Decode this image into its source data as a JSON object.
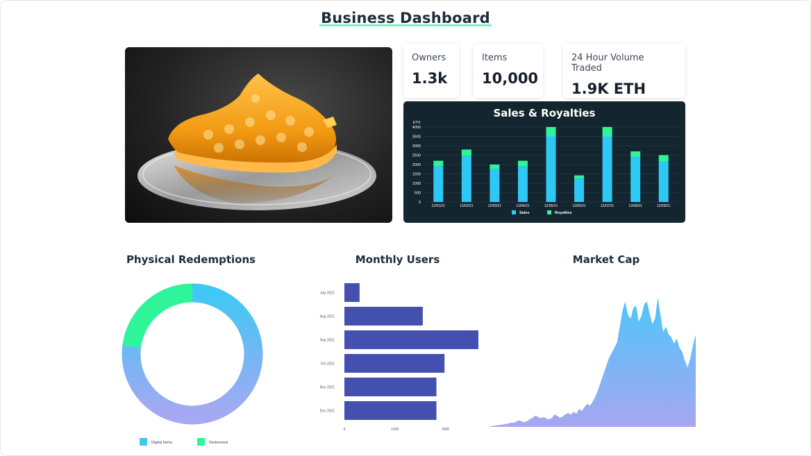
{
  "page": {
    "title": "Business Dashboard"
  },
  "stats": [
    {
      "label": "Owners",
      "value": "1.3k"
    },
    {
      "label": "Items",
      "value": "10,000"
    },
    {
      "label": "24 Hour Volume Traded",
      "value": "1.9K ETH"
    }
  ],
  "sections": {
    "physical_redemptions": "Physical Redemptions",
    "monthly_users": "Monthly Users",
    "market_cap": "Market Cap"
  },
  "colors": {
    "sales": "#2ec8f5",
    "royalties": "#2ef59a",
    "users_bar": "#4350b0",
    "donut_top": "#3fc8f5",
    "donut_bottom": "#a5a8f2",
    "redeemed": "#2ef59a",
    "area_top": "#4dc6fb",
    "area_bottom": "#a7a6f1"
  },
  "chart_data": [
    {
      "id": "sales_royalties",
      "type": "bar",
      "title": "Sales & Royalties",
      "ylabel": "ETH",
      "categories": [
        "12/01/21",
        "12/02/21",
        "12/03/21",
        "12/04/21",
        "12/05/21",
        "12/06/21",
        "12/07/21",
        "12/08/21",
        "12/09/21"
      ],
      "series": [
        {
          "name": "Sales",
          "values": [
            1900,
            2450,
            1750,
            1900,
            3500,
            1250,
            3500,
            2400,
            2150
          ]
        },
        {
          "name": "Royalties",
          "values": [
            300,
            350,
            250,
            300,
            500,
            170,
            500,
            300,
            350
          ]
        }
      ],
      "stacked": true,
      "ylim": [
        0,
        4000
      ],
      "yticks": [
        "0",
        "500",
        "1000",
        "1500",
        "2000",
        "2500",
        "3000",
        "3500",
        "4000"
      ],
      "legend": "bottom"
    },
    {
      "id": "physical_redemptions",
      "type": "pie",
      "title": "Physical Redemptions",
      "donut": true,
      "categories": [
        "Digital Items",
        "Redeemed"
      ],
      "values": [
        77,
        23
      ],
      "legend": "bottom"
    },
    {
      "id": "monthly_users",
      "type": "bar",
      "orientation": "horizontal",
      "title": "Monthly Users",
      "categories": [
        "July 2021",
        "Aug 2021",
        "Sep 2021",
        "Oct 2021",
        "Nov 2021",
        "Dec 2021"
      ],
      "values": [
        300,
        1550,
        2650,
        1980,
        1820,
        1820
      ],
      "xlim": [
        0,
        2650
      ],
      "xticks": [
        "0",
        "1000",
        "2000"
      ]
    },
    {
      "id": "market_cap",
      "type": "area",
      "title": "Market Cap",
      "values": [
        0.5,
        0.7,
        1.0,
        1.2,
        1.5,
        1.8,
        2.2,
        2.6,
        3.2,
        3.0,
        4.2,
        5.0,
        4.0,
        3.6,
        4.4,
        6.0,
        7.0,
        8.5,
        7.4,
        6.6,
        7.6,
        6.2,
        5.8,
        6.8,
        9.5,
        8.2,
        7.0,
        7.8,
        9.6,
        10.5,
        9.2,
        11.5,
        10.0,
        13.5,
        12.0,
        15.0,
        17.5,
        16.0,
        19.0,
        23.0,
        28.0,
        34.0,
        40.0,
        46.0,
        52.0,
        56.0,
        60.0,
        64.0,
        76.0,
        88.0,
        95.0,
        85.0,
        82.0,
        90.0,
        92.0,
        80.0,
        84.0,
        93.0,
        95.0,
        86.0,
        78.0,
        82.0,
        98.0,
        85.0,
        72.0,
        76.0,
        70.0,
        68.0,
        63.0,
        67.0,
        60.0,
        57.0,
        50.0,
        45.0,
        52.0,
        62.0,
        70.0
      ],
      "ylim": [
        0,
        100
      ]
    }
  ]
}
